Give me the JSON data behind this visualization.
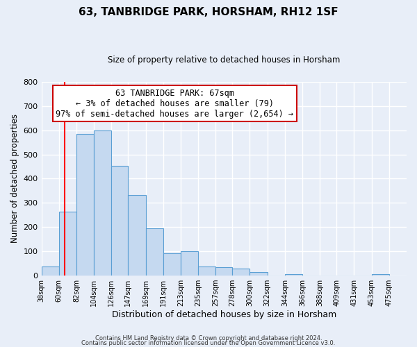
{
  "title": "63, TANBRIDGE PARK, HORSHAM, RH12 1SF",
  "subtitle": "Size of property relative to detached houses in Horsham",
  "xlabel": "Distribution of detached houses by size in Horsham",
  "ylabel": "Number of detached properties",
  "bar_left_edges": [
    38,
    60,
    82,
    104,
    126,
    147,
    169,
    191,
    213,
    235,
    257,
    278,
    300,
    322,
    344,
    366,
    388,
    409,
    431,
    453
  ],
  "bar_heights": [
    38,
    265,
    585,
    600,
    453,
    333,
    195,
    93,
    100,
    38,
    35,
    30,
    15,
    0,
    5,
    0,
    0,
    0,
    0,
    5
  ],
  "bar_widths": [
    22,
    22,
    22,
    22,
    21,
    22,
    22,
    22,
    22,
    22,
    21,
    22,
    22,
    22,
    22,
    22,
    21,
    22,
    22,
    22
  ],
  "tick_labels": [
    "38sqm",
    "60sqm",
    "82sqm",
    "104sqm",
    "126sqm",
    "147sqm",
    "169sqm",
    "191sqm",
    "213sqm",
    "235sqm",
    "257sqm",
    "278sqm",
    "300sqm",
    "322sqm",
    "344sqm",
    "366sqm",
    "388sqm",
    "409sqm",
    "431sqm",
    "453sqm",
    "475sqm"
  ],
  "tick_positions": [
    38,
    60,
    82,
    104,
    126,
    147,
    169,
    191,
    213,
    235,
    257,
    278,
    300,
    322,
    344,
    366,
    388,
    409,
    431,
    453,
    475
  ],
  "bar_color": "#c5d9f0",
  "bar_edge_color": "#5a9fd4",
  "red_line_x": 67,
  "annotation_title": "63 TANBRIDGE PARK: 67sqm",
  "annotation_line1": "← 3% of detached houses are smaller (79)",
  "annotation_line2": "97% of semi-detached houses are larger (2,654) →",
  "annotation_box_color": "#ffffff",
  "annotation_box_edge_color": "#cc0000",
  "ylim": [
    0,
    800
  ],
  "yticks": [
    0,
    100,
    200,
    300,
    400,
    500,
    600,
    700,
    800
  ],
  "footer1": "Contains HM Land Registry data © Crown copyright and database right 2024.",
  "footer2": "Contains public sector information licensed under the Open Government Licence v3.0.",
  "bg_color": "#e8eef8",
  "plot_bg_color": "#e8eef8",
  "grid_color": "#ffffff",
  "xlim_left": 38,
  "xlim_right": 497
}
